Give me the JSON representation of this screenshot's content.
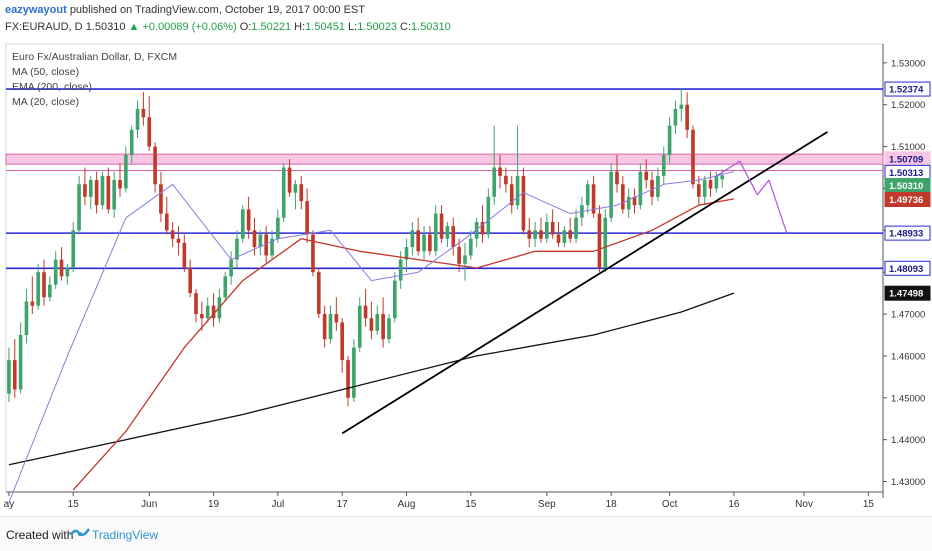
{
  "header": {
    "author": "eazywayout",
    "published_text": "published on TradingView.com, October 19, 2017 00:00 EST",
    "symbol": "FX:EURAUD, D",
    "last": "1.50310",
    "change": "+0.00089 (+0.06%)",
    "o_label": "O:",
    "o_value": "1.50221",
    "h_label": "H:",
    "h_value": "1.50451",
    "l_label": "L:",
    "l_value": "1.50023",
    "c_label": "C:",
    "c_value": "1.50310"
  },
  "legend": {
    "title": "Euro Fx/Australian Dollar, D, FXCM",
    "ma50": "MA (50, close)",
    "ema200": "EMA (200, close)",
    "ma20": "MA (20, close)"
  },
  "footer": {
    "created_with": "Created with",
    "brand": "TradingView"
  },
  "colors": {
    "bull": "#3fa36c",
    "bear": "#c0392b",
    "hline": "#2929d9",
    "ema200": "#111111",
    "ma50": "#c0392b",
    "ma20": "#8a7ae0",
    "zone": "#f7c6e3",
    "projection": "#b44fe0"
  },
  "chart_data": {
    "type": "candlestick",
    "y_ticks": [
      "1.53000",
      "1.52000",
      "1.51000",
      "1.50000",
      "1.49000",
      "1.48000",
      "1.47000",
      "1.46000",
      "1.45000",
      "1.44000",
      "1.43000"
    ],
    "y_tick_values": [
      1.53,
      1.52,
      1.51,
      1.5,
      1.49,
      1.48,
      1.47,
      1.46,
      1.45,
      1.44,
      1.43
    ],
    "ylim": [
      1.4275,
      1.5345
    ],
    "x_ticks": [
      {
        "label": "ay",
        "bar": 0
      },
      {
        "label": "15",
        "bar": 11
      },
      {
        "label": "Jun",
        "bar": 24
      },
      {
        "label": "19",
        "bar": 35
      },
      {
        "label": "Jul",
        "bar": 46
      },
      {
        "label": "17",
        "bar": 57
      },
      {
        "label": "Aug",
        "bar": 68
      },
      {
        "label": "15",
        "bar": 79
      },
      {
        "label": "Sep",
        "bar": 92
      },
      {
        "label": "18",
        "bar": 103
      },
      {
        "label": "Oct",
        "bar": 113
      },
      {
        "label": "16",
        "bar": 124
      },
      {
        "label": "Nov",
        "bar": 136
      },
      {
        "label": "15",
        "bar": 147
      }
    ],
    "n_slots": 150,
    "candles": [
      [
        1.451,
        1.462,
        1.449,
        1.459
      ],
      [
        1.459,
        1.464,
        1.45,
        1.452
      ],
      [
        1.452,
        1.468,
        1.451,
        1.465
      ],
      [
        1.465,
        1.476,
        1.463,
        1.473
      ],
      [
        1.473,
        1.479,
        1.47,
        1.472
      ],
      [
        1.472,
        1.482,
        1.471,
        1.48
      ],
      [
        1.48,
        1.483,
        1.472,
        1.474
      ],
      [
        1.474,
        1.479,
        1.473,
        1.477
      ],
      [
        1.477,
        1.485,
        1.476,
        1.483
      ],
      [
        1.483,
        1.486,
        1.478,
        1.479
      ],
      [
        1.479,
        1.482,
        1.477,
        1.481
      ],
      [
        1.481,
        1.492,
        1.48,
        1.49
      ],
      [
        1.49,
        1.503,
        1.489,
        1.501
      ],
      [
        1.501,
        1.505,
        1.496,
        1.498
      ],
      [
        1.498,
        1.503,
        1.495,
        1.502
      ],
      [
        1.502,
        1.504,
        1.494,
        1.496
      ],
      [
        1.496,
        1.504,
        1.495,
        1.503
      ],
      [
        1.503,
        1.505,
        1.494,
        1.495
      ],
      [
        1.495,
        1.504,
        1.493,
        1.502
      ],
      [
        1.502,
        1.506,
        1.498,
        1.5
      ],
      [
        1.5,
        1.51,
        1.499,
        1.508
      ],
      [
        1.508,
        1.515,
        1.506,
        1.514
      ],
      [
        1.514,
        1.521,
        1.512,
        1.519
      ],
      [
        1.519,
        1.523,
        1.515,
        1.517
      ],
      [
        1.517,
        1.522,
        1.509,
        1.51
      ],
      [
        1.51,
        1.511,
        1.499,
        1.501
      ],
      [
        1.501,
        1.504,
        1.492,
        1.494
      ],
      [
        1.494,
        1.498,
        1.489,
        1.49
      ],
      [
        1.49,
        1.492,
        1.486,
        1.488
      ],
      [
        1.488,
        1.491,
        1.484,
        1.487
      ],
      [
        1.487,
        1.489,
        1.48,
        1.481
      ],
      [
        1.481,
        1.483,
        1.474,
        1.475
      ],
      [
        1.475,
        1.476,
        1.468,
        1.47
      ],
      [
        1.47,
        1.473,
        1.466,
        1.469
      ],
      [
        1.469,
        1.474,
        1.468,
        1.472
      ],
      [
        1.472,
        1.475,
        1.467,
        1.469
      ],
      [
        1.469,
        1.476,
        1.468,
        1.474
      ],
      [
        1.474,
        1.48,
        1.473,
        1.479
      ],
      [
        1.479,
        1.485,
        1.477,
        1.483
      ],
      [
        1.483,
        1.49,
        1.481,
        1.488
      ],
      [
        1.488,
        1.496,
        1.487,
        1.495
      ],
      [
        1.495,
        1.498,
        1.488,
        1.49
      ],
      [
        1.49,
        1.493,
        1.484,
        1.486
      ],
      [
        1.486,
        1.49,
        1.484,
        1.489
      ],
      [
        1.489,
        1.491,
        1.482,
        1.484
      ],
      [
        1.484,
        1.49,
        1.483,
        1.488
      ],
      [
        1.488,
        1.495,
        1.487,
        1.493
      ],
      [
        1.493,
        1.506,
        1.492,
        1.505
      ],
      [
        1.505,
        1.507,
        1.498,
        1.499
      ],
      [
        1.499,
        1.502,
        1.495,
        1.501
      ],
      [
        1.501,
        1.503,
        1.495,
        1.497
      ],
      [
        1.497,
        1.5,
        1.487,
        1.489
      ],
      [
        1.489,
        1.49,
        1.479,
        1.48
      ],
      [
        1.48,
        1.481,
        1.469,
        1.47
      ],
      [
        1.47,
        1.472,
        1.462,
        1.464
      ],
      [
        1.464,
        1.472,
        1.463,
        1.47
      ],
      [
        1.47,
        1.474,
        1.466,
        1.468
      ],
      [
        1.468,
        1.469,
        1.456,
        1.459
      ],
      [
        1.459,
        1.46,
        1.448,
        1.45
      ],
      [
        1.45,
        1.464,
        1.449,
        1.462
      ],
      [
        1.462,
        1.474,
        1.461,
        1.472
      ],
      [
        1.472,
        1.476,
        1.467,
        1.469
      ],
      [
        1.469,
        1.473,
        1.464,
        1.466
      ],
      [
        1.466,
        1.472,
        1.465,
        1.47
      ],
      [
        1.47,
        1.474,
        1.462,
        1.464
      ],
      [
        1.464,
        1.47,
        1.463,
        1.469
      ],
      [
        1.469,
        1.48,
        1.468,
        1.478
      ],
      [
        1.478,
        1.485,
        1.476,
        1.483
      ],
      [
        1.483,
        1.488,
        1.48,
        1.486
      ],
      [
        1.486,
        1.492,
        1.484,
        1.49
      ],
      [
        1.49,
        1.493,
        1.484,
        1.485
      ],
      [
        1.485,
        1.491,
        1.483,
        1.489
      ],
      [
        1.489,
        1.491,
        1.484,
        1.485
      ],
      [
        1.485,
        1.496,
        1.484,
        1.494
      ],
      [
        1.494,
        1.496,
        1.487,
        1.488
      ],
      [
        1.488,
        1.492,
        1.486,
        1.491
      ],
      [
        1.491,
        1.493,
        1.484,
        1.486
      ],
      [
        1.486,
        1.488,
        1.48,
        1.482
      ],
      [
        1.482,
        1.487,
        1.478,
        1.484
      ],
      [
        1.484,
        1.49,
        1.483,
        1.488
      ],
      [
        1.488,
        1.493,
        1.486,
        1.492
      ],
      [
        1.492,
        1.496,
        1.487,
        1.489
      ],
      [
        1.489,
        1.5,
        1.488,
        1.498
      ],
      [
        1.498,
        1.515,
        1.496,
        1.505
      ],
      [
        1.505,
        1.508,
        1.5,
        1.503
      ],
      [
        1.503,
        1.505,
        1.499,
        1.501
      ],
      [
        1.501,
        1.503,
        1.494,
        1.496
      ],
      [
        1.496,
        1.515,
        1.495,
        1.503
      ],
      [
        1.503,
        1.505,
        1.489,
        1.49
      ],
      [
        1.49,
        1.493,
        1.486,
        1.488
      ],
      [
        1.488,
        1.492,
        1.486,
        1.49
      ],
      [
        1.49,
        1.493,
        1.487,
        1.488
      ],
      [
        1.488,
        1.494,
        1.487,
        1.492
      ],
      [
        1.492,
        1.495,
        1.488,
        1.489
      ],
      [
        1.489,
        1.492,
        1.486,
        1.487
      ],
      [
        1.487,
        1.491,
        1.486,
        1.49
      ],
      [
        1.49,
        1.493,
        1.487,
        1.488
      ],
      [
        1.488,
        1.495,
        1.487,
        1.493
      ],
      [
        1.493,
        1.498,
        1.491,
        1.496
      ],
      [
        1.496,
        1.502,
        1.494,
        1.501
      ],
      [
        1.501,
        1.503,
        1.493,
        1.494
      ],
      [
        1.494,
        1.496,
        1.48,
        1.481
      ],
      [
        1.481,
        1.495,
        1.48,
        1.493
      ],
      [
        1.493,
        1.506,
        1.492,
        1.504
      ],
      [
        1.504,
        1.508,
        1.499,
        1.501
      ],
      [
        1.501,
        1.503,
        1.494,
        1.495
      ],
      [
        1.495,
        1.5,
        1.493,
        1.498
      ],
      [
        1.498,
        1.5,
        1.494,
        1.496
      ],
      [
        1.496,
        1.506,
        1.495,
        1.504
      ],
      [
        1.504,
        1.507,
        1.5,
        1.502
      ],
      [
        1.502,
        1.504,
        1.496,
        1.498
      ],
      [
        1.498,
        1.505,
        1.497,
        1.503
      ],
      [
        1.503,
        1.51,
        1.501,
        1.508
      ],
      [
        1.508,
        1.517,
        1.506,
        1.515
      ],
      [
        1.515,
        1.521,
        1.513,
        1.519
      ],
      [
        1.519,
        1.524,
        1.516,
        1.52
      ],
      [
        1.52,
        1.523,
        1.512,
        1.514
      ],
      [
        1.514,
        1.515,
        1.5,
        1.501
      ],
      [
        1.501,
        1.503,
        1.496,
        1.498
      ],
      [
        1.498,
        1.503,
        1.496,
        1.502
      ],
      [
        1.502,
        1.504,
        1.498,
        1.5
      ],
      [
        1.5,
        1.504,
        1.499,
        1.503
      ],
      [
        1.5022,
        1.5045,
        1.5002,
        1.5031
      ]
    ],
    "ema200": [
      [
        0,
        1.434
      ],
      [
        20,
        1.44
      ],
      [
        40,
        1.446
      ],
      [
        60,
        1.453
      ],
      [
        80,
        1.46
      ],
      [
        100,
        1.465
      ],
      [
        115,
        1.4705
      ],
      [
        124,
        1.475
      ]
    ],
    "ma50": [
      [
        11,
        1.428
      ],
      [
        20,
        1.442
      ],
      [
        30,
        1.462
      ],
      [
        40,
        1.478
      ],
      [
        50,
        1.488
      ],
      [
        60,
        1.485
      ],
      [
        70,
        1.483
      ],
      [
        80,
        1.481
      ],
      [
        90,
        1.485
      ],
      [
        100,
        1.485
      ],
      [
        110,
        1.49
      ],
      [
        118,
        1.496
      ],
      [
        124,
        1.4975
      ]
    ],
    "ma20": [
      [
        0,
        1.425
      ],
      [
        10,
        1.46
      ],
      [
        20,
        1.493
      ],
      [
        28,
        1.501
      ],
      [
        38,
        1.483
      ],
      [
        46,
        1.488
      ],
      [
        55,
        1.49
      ],
      [
        62,
        1.478
      ],
      [
        70,
        1.48
      ],
      [
        78,
        1.488
      ],
      [
        88,
        1.499
      ],
      [
        96,
        1.494
      ],
      [
        104,
        1.496
      ],
      [
        112,
        1.501
      ],
      [
        118,
        1.502
      ],
      [
        124,
        1.504
      ]
    ],
    "horizontal_levels": [
      {
        "value": 1.52374,
        "label": "1.52374",
        "color": "#2929d9"
      },
      {
        "value": 1.48933,
        "label": "1.48933",
        "color": "#2929d9"
      },
      {
        "value": 1.48093,
        "label": "1.48093",
        "color": "#2929d9"
      }
    ],
    "zone": {
      "top": 1.5082,
      "bottom": 1.5058,
      "label": "1.50709"
    },
    "zone_line": 1.5043,
    "price_labels": [
      {
        "value": 1.50709,
        "label": "1.50709",
        "bg": "#f7c6e3",
        "fg": "#1a1a8a"
      },
      {
        "value": 1.50313,
        "label": "1.50313",
        "bg": "#ffffff",
        "fg": "#1a1a8a"
      },
      {
        "value": 1.5031,
        "label": "1.50310",
        "bg": "#3fa36c",
        "fg": "#ffffff"
      },
      {
        "value": 1.49736,
        "label": "1.49736",
        "bg": "#c0392b",
        "fg": "#ffffff"
      },
      {
        "value": 1.47498,
        "label": "1.47498",
        "bg": "#111111",
        "fg": "#ffffff"
      }
    ],
    "trendline": [
      [
        57,
        1.4415
      ],
      [
        140,
        1.5135
      ]
    ],
    "projection": [
      [
        121,
        1.503
      ],
      [
        125,
        1.5065
      ],
      [
        128,
        1.4985
      ],
      [
        130,
        1.502
      ],
      [
        133,
        1.4895
      ]
    ]
  }
}
